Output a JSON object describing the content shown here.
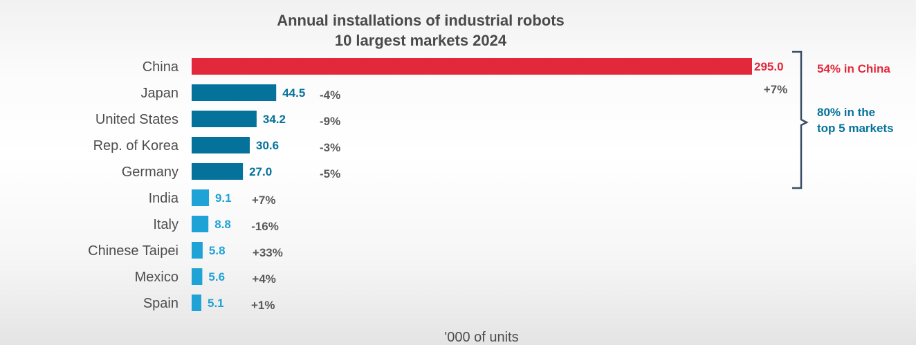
{
  "colors": {
    "china": "#e2293b",
    "top5": "#05729c",
    "others": "#1fa2d6",
    "change_text": "#595959",
    "bracket": "#3a4d66"
  },
  "chart_data": {
    "type": "bar",
    "orientation": "horizontal",
    "title_line1": "Annual installations of industrial robots",
    "title_line2": "10 largest markets 2024",
    "xlabel": "'000 of units",
    "xlim": [
      0,
      295
    ],
    "grid": false,
    "categories": [
      "China",
      "Japan",
      "United States",
      "Rep. of Korea",
      "Germany",
      "India",
      "Italy",
      "Chinese Taipei",
      "Mexico",
      "Spain"
    ],
    "values": [
      295.0,
      44.5,
      34.2,
      30.6,
      27.0,
      9.1,
      8.8,
      5.8,
      5.6,
      5.1
    ],
    "value_labels": [
      "295.0",
      "44.5",
      "34.2",
      "30.6",
      "27.0",
      "9.1",
      "8.8",
      "5.8",
      "5.6",
      "5.1"
    ],
    "changes": [
      "+7%",
      "-4%",
      "-9%",
      "-3%",
      "-5%",
      "+7%",
      "-16%",
      "+33%",
      "+4%",
      "+1%"
    ],
    "groups": [
      "china",
      "top5",
      "top5",
      "top5",
      "top5",
      "others",
      "others",
      "others",
      "others",
      "others"
    ],
    "annotations": {
      "china_share": "54% in China",
      "top5_share_line1": "80% in the",
      "top5_share_line2": "top 5 markets"
    }
  }
}
